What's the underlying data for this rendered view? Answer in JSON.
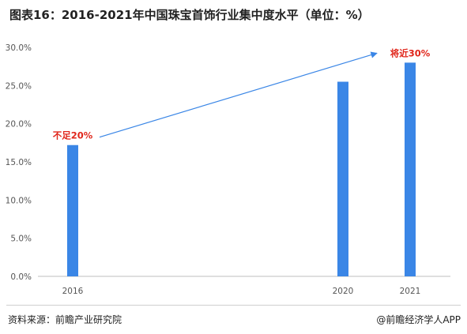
{
  "title": "图表16：2016-2021年中国珠宝首饰行业集中度水平（单位：%）",
  "footer": {
    "source": "资料来源：前瞻产业研究院",
    "brand": "@前瞻经济学人APP"
  },
  "colors": {
    "bar": "#3a86e6",
    "arrow": "#3a86e6",
    "annotation": "#e0261b",
    "axis_text": "#555555"
  },
  "chart_data": {
    "type": "bar",
    "categories": [
      "2016",
      "2020",
      "2021"
    ],
    "values": [
      17.2,
      25.5,
      28.0
    ],
    "ylim": [
      0,
      30
    ],
    "yticks": [
      "0.0%",
      "5.0%",
      "10.0%",
      "15.0%",
      "20.0%",
      "25.0%",
      "30.0%"
    ],
    "xlabel": "",
    "ylabel": "",
    "grid": false,
    "annotations": [
      {
        "text": "不足20%",
        "category": "2016"
      },
      {
        "text": "将近30%",
        "category": "2021"
      }
    ]
  }
}
